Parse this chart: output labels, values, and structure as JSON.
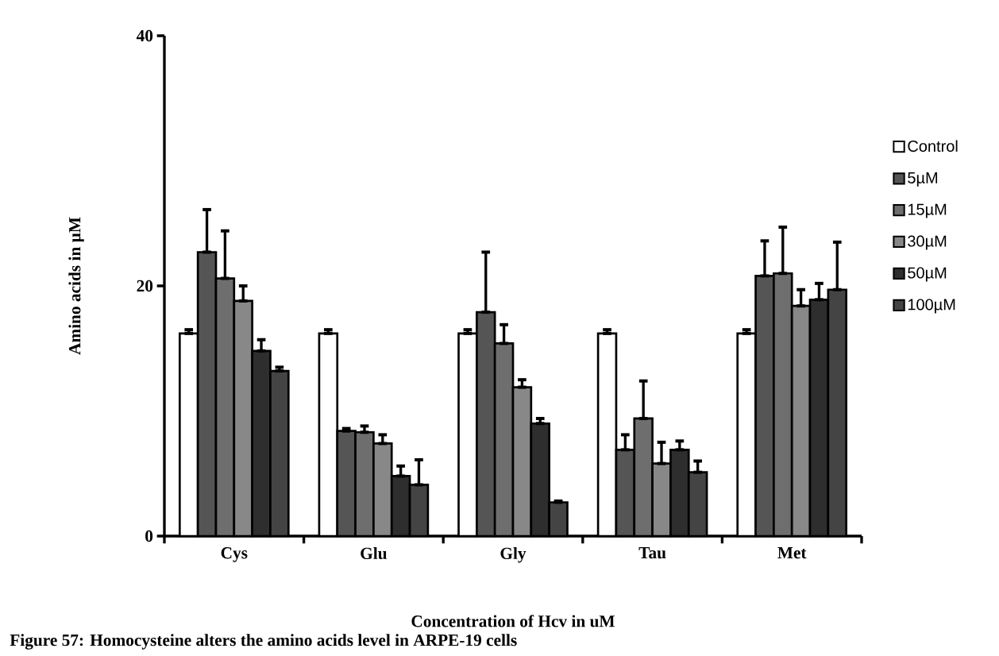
{
  "chart_data": {
    "type": "bar",
    "xlabel": "Concentration of Hcv in uM",
    "ylabel": "Amino acids in µM",
    "categories": [
      "Cys",
      "Glu",
      "Gly",
      "Tau",
      "Met"
    ],
    "series": [
      {
        "name": "Control",
        "color": "#ffffff",
        "values": [
          16.2,
          16.2,
          16.2,
          16.2,
          16.2
        ],
        "errors": [
          [
            16.2,
            16.5
          ],
          [
            16.2,
            16.5
          ],
          [
            16.2,
            16.5
          ],
          [
            16.2,
            16.5
          ],
          [
            16.2,
            16.5
          ]
        ]
      },
      {
        "name": "5µM",
        "color": "#555555",
        "values": [
          22.7,
          8.4,
          17.9,
          6.9,
          20.8
        ],
        "errors": [
          [
            22.7,
            26.1
          ],
          [
            8.4,
            8.6
          ],
          [
            17.9,
            22.7
          ],
          [
            6.9,
            8.1
          ],
          [
            20.8,
            23.6
          ]
        ]
      },
      {
        "name": "15µM",
        "color": "#6e6e6e",
        "values": [
          20.6,
          8.3,
          15.4,
          9.4,
          21.0
        ],
        "errors": [
          [
            20.6,
            24.4
          ],
          [
            8.3,
            8.8
          ],
          [
            15.4,
            16.9
          ],
          [
            9.4,
            12.4
          ],
          [
            21.0,
            24.7
          ]
        ]
      },
      {
        "name": "30µM",
        "color": "#888888",
        "values": [
          18.8,
          7.4,
          11.9,
          5.8,
          18.4
        ],
        "errors": [
          [
            18.8,
            20.0
          ],
          [
            7.4,
            8.1
          ],
          [
            11.9,
            12.5
          ],
          [
            5.8,
            7.5
          ],
          [
            18.4,
            19.7
          ]
        ]
      },
      {
        "name": "50µM",
        "color": "#2e2e2e",
        "values": [
          14.8,
          4.8,
          9.0,
          6.9,
          18.9
        ],
        "errors": [
          [
            14.8,
            15.7
          ],
          [
            4.8,
            5.6
          ],
          [
            9.0,
            9.4
          ],
          [
            6.9,
            7.6
          ],
          [
            18.9,
            20.2
          ]
        ]
      },
      {
        "name": "100µM",
        "color": "#444444",
        "values": [
          13.2,
          4.1,
          2.7,
          5.1,
          19.7
        ],
        "errors": [
          [
            13.2,
            13.5
          ],
          [
            4.1,
            6.1
          ],
          [
            2.7,
            2.8
          ],
          [
            5.1,
            6.0
          ],
          [
            19.7,
            23.5
          ]
        ]
      }
    ],
    "ylim": [
      0,
      40
    ],
    "yticks": [
      0,
      20,
      40
    ],
    "legend": "right",
    "grid": false,
    "annotations": [
      "Figure 57: Homocysteine alters the amino acids level in ARPE-19 cells"
    ]
  }
}
